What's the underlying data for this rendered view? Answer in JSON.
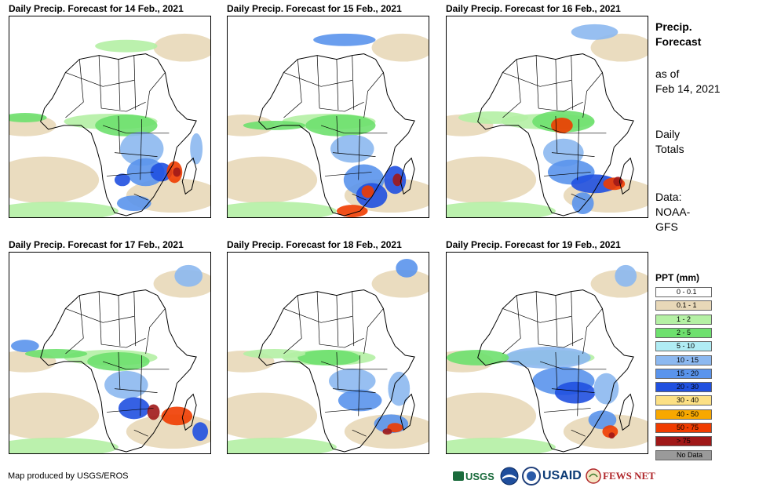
{
  "panels": [
    {
      "title": "Daily Precip. Forecast for 14 Feb., 2021"
    },
    {
      "title": "Daily Precip. Forecast for 15 Feb., 2021"
    },
    {
      "title": "Daily Precip. Forecast for 16 Feb., 2021"
    },
    {
      "title": "Daily Precip. Forecast for 17 Feb., 2021"
    },
    {
      "title": "Daily Precip. Forecast for 18 Feb., 2021"
    },
    {
      "title": "Daily Precip. Forecast for 19 Feb., 2021"
    }
  ],
  "side": {
    "heading_line1": "Precip.",
    "heading_line2": "Forecast",
    "asof_line1": "as of",
    "asof_line2": "Feb 14, 2021",
    "totals_line1": "Daily",
    "totals_line2": "Totals",
    "data_line1": "Data:",
    "data_line2": "NOAA-",
    "data_line3": "GFS"
  },
  "legend": {
    "title": "PPT (mm)",
    "items": [
      {
        "label": "0 - 0.1",
        "color": "#ffffff"
      },
      {
        "label": "0.1 - 1",
        "color": "#e8d8b8"
      },
      {
        "label": "1 - 2",
        "color": "#b4f0a4"
      },
      {
        "label": "2 - 5",
        "color": "#6ee06e"
      },
      {
        "label": "5 - 10",
        "color": "#b0ecf4"
      },
      {
        "label": "10 - 15",
        "color": "#8cb8f0"
      },
      {
        "label": "15 - 20",
        "color": "#5a94ec"
      },
      {
        "label": "20 - 30",
        "color": "#2050e0"
      },
      {
        "label": "30 - 40",
        "color": "#fce084"
      },
      {
        "label": "40 - 50",
        "color": "#f8a800"
      },
      {
        "label": "50 - 75",
        "color": "#f03c00"
      },
      {
        "label": "> 75",
        "color": "#a01818"
      },
      {
        "label": "No Data",
        "color": "#9a9a9a"
      }
    ]
  },
  "credit": "Map produced by USGS/EROS",
  "logos": {
    "usgs": "USGS",
    "noaa": "NOAA",
    "usaid": "USAID",
    "fewsnet": "FEWS NET"
  }
}
